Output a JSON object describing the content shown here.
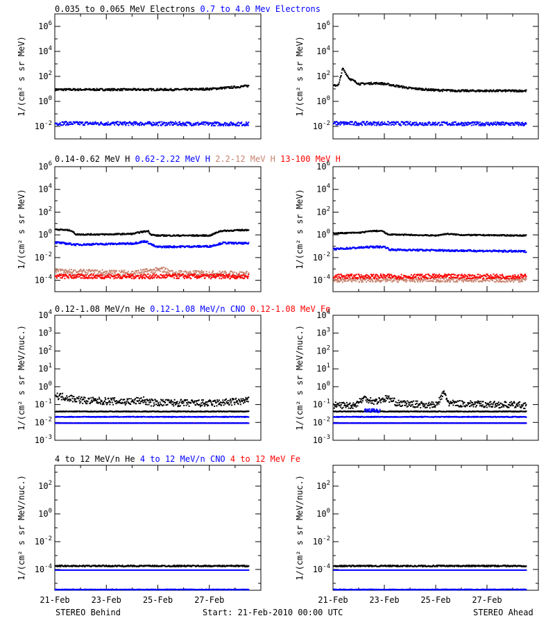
{
  "footer": {
    "left": "STEREO Behind",
    "center": "Start: 21-Feb-2010 00:00 UTC",
    "right": "STEREO Ahead"
  },
  "x_ticks": [
    "21-Feb",
    "23-Feb",
    "25-Feb",
    "27-Feb"
  ],
  "colors": {
    "black": "#000000",
    "blue": "#0000ff",
    "tan": "#c8826e",
    "red": "#ff0000"
  },
  "chart_data": [
    {
      "row": 0,
      "type": "scatter",
      "ylabel": "1/(cm² s sr MeV)",
      "log_exponent_range": [
        -3,
        7
      ],
      "tick_exponents": [
        -2,
        0,
        2,
        4,
        6
      ],
      "legend": [
        {
          "text": "0.035 to 0.065 MeV Electrons",
          "color": "#000000"
        },
        {
          "text": "0.7 to 4.0 Mev Electrons",
          "color": "#0000ff"
        }
      ],
      "panels": [
        {
          "station": "STEREO Behind",
          "series": [
            {
              "color": "#000000",
              "points": [
                [
                  0,
                  1.0
                ],
                [
                  1,
                  1.0
                ],
                [
                  2,
                  1.0
                ],
                [
                  3,
                  1.0
                ],
                [
                  4,
                  1.0
                ],
                [
                  5,
                  1.0
                ],
                [
                  6,
                  1.05
                ],
                [
                  7,
                  1.2
                ],
                [
                  7.5,
                  1.3
                ]
              ],
              "jitter": 0.08
            },
            {
              "color": "#0000ff",
              "points": [
                [
                  0,
                  -1.7
                ],
                [
                  7.5,
                  -1.75
                ]
              ],
              "jitter": 0.15
            }
          ]
        },
        {
          "station": "STEREO Ahead",
          "series": [
            {
              "color": "#000000",
              "points": [
                [
                  0,
                  1.3
                ],
                [
                  0.2,
                  1.4
                ],
                [
                  0.35,
                  2.7
                ],
                [
                  0.6,
                  1.9
                ],
                [
                  1.0,
                  1.45
                ],
                [
                  1.5,
                  1.5
                ],
                [
                  1.8,
                  1.5
                ],
                [
                  2.0,
                  1.45
                ],
                [
                  3,
                  1.1
                ],
                [
                  4,
                  0.95
                ],
                [
                  5,
                  0.9
                ],
                [
                  6,
                  0.9
                ],
                [
                  7.5,
                  0.9
                ]
              ],
              "jitter": 0.08
            },
            {
              "color": "#0000ff",
              "points": [
                [
                  0,
                  -1.7
                ],
                [
                  7.5,
                  -1.75
                ]
              ],
              "jitter": 0.15
            }
          ]
        }
      ]
    },
    {
      "row": 1,
      "type": "scatter",
      "ylabel": "1/(cm² s sr MeV)",
      "log_exponent_range": [
        -5,
        6
      ],
      "tick_exponents": [
        -4,
        -2,
        0,
        2,
        4,
        6
      ],
      "legend": [
        {
          "text": "0.14-0.62 MeV H",
          "color": "#000000"
        },
        {
          "text": "0.62-2.22 MeV H",
          "color": "#0000ff"
        },
        {
          "text": "2.2-12 MeV H",
          "color": "#c8826e"
        },
        {
          "text": "13-100 MeV H",
          "color": "#ff0000"
        }
      ],
      "panels": [
        {
          "station": "STEREO Behind",
          "series": [
            {
              "color": "#c8826e",
              "points": [
                [
                  0,
                  -3.2
                ],
                [
                  3,
                  -3.3
                ],
                [
                  4.2,
                  -3.0
                ],
                [
                  4.5,
                  -3.3
                ],
                [
                  7.5,
                  -3.4
                ]
              ],
              "jitter": 0.25
            },
            {
              "color": "#ff0000",
              "points": [
                [
                  0,
                  -3.6
                ],
                [
                  7.5,
                  -3.6
                ]
              ],
              "jitter": 0.2
            },
            {
              "color": "#000000",
              "points": [
                [
                  0,
                  0.55
                ],
                [
                  0.6,
                  0.45
                ],
                [
                  0.8,
                  0.1
                ],
                [
                  2,
                  0.1
                ],
                [
                  3,
                  0.15
                ],
                [
                  3.3,
                  0.3
                ],
                [
                  3.6,
                  0.4
                ],
                [
                  3.7,
                  0.1
                ],
                [
                  3.9,
                  0.0
                ],
                [
                  6,
                  0.0
                ],
                [
                  6.4,
                  0.4
                ],
                [
                  7.5,
                  0.5
                ]
              ],
              "jitter": 0.06
            },
            {
              "color": "#0000ff",
              "points": [
                [
                  0,
                  -0.6
                ],
                [
                  0.8,
                  -0.8
                ],
                [
                  3,
                  -0.7
                ],
                [
                  3.5,
                  -0.5
                ],
                [
                  3.9,
                  -1.0
                ],
                [
                  6,
                  -0.95
                ],
                [
                  6.5,
                  -0.65
                ],
                [
                  7.5,
                  -0.7
                ]
              ],
              "jitter": 0.08
            }
          ]
        },
        {
          "station": "STEREO Ahead",
          "series": [
            {
              "color": "#c8826e",
              "points": [
                [
                  0,
                  -3.9
                ],
                [
                  7.5,
                  -3.9
                ]
              ],
              "jitter": 0.2
            },
            {
              "color": "#ff0000",
              "points": [
                [
                  0,
                  -3.6
                ],
                [
                  7.5,
                  -3.6
                ]
              ],
              "jitter": 0.2
            },
            {
              "color": "#000000",
              "points": [
                [
                  0,
                  0.2
                ],
                [
                  1.0,
                  0.25
                ],
                [
                  1.5,
                  0.4
                ],
                [
                  1.9,
                  0.4
                ],
                [
                  2.1,
                  0.1
                ],
                [
                  4,
                  0.0
                ],
                [
                  4.4,
                  0.15
                ],
                [
                  5,
                  0.05
                ],
                [
                  7.5,
                  0.0
                ]
              ],
              "jitter": 0.05
            },
            {
              "color": "#0000ff",
              "points": [
                [
                  0,
                  -1.2
                ],
                [
                  1.5,
                  -1.0
                ],
                [
                  2.0,
                  -1.0
                ],
                [
                  2.2,
                  -1.25
                ],
                [
                  7.5,
                  -1.4
                ]
              ],
              "jitter": 0.08
            }
          ]
        }
      ]
    },
    {
      "row": 2,
      "type": "scatter",
      "ylabel": "1/(cm² s sr MeV/nuc.)",
      "log_exponent_range": [
        -3,
        4
      ],
      "tick_exponents": [
        -3,
        -2,
        -1,
        0,
        1,
        2,
        3,
        4
      ],
      "legend": [
        {
          "text": "0.12-1.08 MeV/n He",
          "color": "#000000"
        },
        {
          "text": "0.12-1.08 MeV/n CNO",
          "color": "#0000ff"
        },
        {
          "text": "0.12-1.08 MeV Fe",
          "color": "#ff0000"
        }
      ],
      "panels": [
        {
          "station": "STEREO Behind",
          "series": [
            {
              "color": "#000000",
              "points": [
                [
                  0,
                  -0.45
                ],
                [
                  0.6,
                  -0.6
                ],
                [
                  1.2,
                  -0.75
                ],
                [
                  3,
                  -0.8
                ],
                [
                  3.4,
                  -0.7
                ],
                [
                  3.6,
                  -0.85
                ],
                [
                  6,
                  -0.9
                ],
                [
                  7.5,
                  -0.75
                ]
              ],
              "jitter": 0.2
            },
            {
              "color": "#000000",
              "points": [
                [
                  0,
                  -1.35
                ],
                [
                  7.5,
                  -1.35
                ]
              ],
              "jitter": 0.02
            },
            {
              "color": "#0000ff",
              "points": [
                [
                  0,
                  -1.65
                ],
                [
                  7.5,
                  -1.65
                ]
              ],
              "jitter": 0.02
            },
            {
              "color": "#ff0000",
              "points": [
                [
                  0,
                  -2.0
                ],
                [
                  7.5,
                  -2.0
                ]
              ],
              "jitter": 0.01
            },
            {
              "color": "#0000ff",
              "points": [
                [
                  0,
                  -2.0
                ],
                [
                  7.5,
                  -2.0
                ]
              ],
              "jitter": 0.01
            }
          ]
        },
        {
          "station": "STEREO Ahead",
          "series": [
            {
              "color": "#000000",
              "points": [
                [
                  0,
                  -1.0
                ],
                [
                  0.8,
                  -1.0
                ],
                [
                  1.2,
                  -0.6
                ],
                [
                  1.6,
                  -0.8
                ],
                [
                  2.1,
                  -0.6
                ],
                [
                  2.5,
                  -0.9
                ],
                [
                  4.0,
                  -1.0
                ],
                [
                  4.3,
                  -0.3
                ],
                [
                  4.5,
                  -0.9
                ],
                [
                  7.5,
                  -1.0
                ]
              ],
              "jitter": 0.18
            },
            {
              "color": "#000000",
              "points": [
                [
                  0,
                  -1.35
                ],
                [
                  7.5,
                  -1.35
                ]
              ],
              "jitter": 0.02
            },
            {
              "color": "#0000ff",
              "points": [
                [
                  1.2,
                  -1.3
                ],
                [
                  1.8,
                  -1.3
                ]
              ],
              "jitter": 0.1
            },
            {
              "color": "#0000ff",
              "points": [
                [
                  0,
                  -1.65
                ],
                [
                  7.5,
                  -1.65
                ]
              ],
              "jitter": 0.02
            },
            {
              "color": "#ff0000",
              "points": [
                [
                  0,
                  -2.0
                ],
                [
                  7.5,
                  -2.0
                ]
              ],
              "jitter": 0.01
            },
            {
              "color": "#0000ff",
              "points": [
                [
                  0,
                  -2.0
                ],
                [
                  7.5,
                  -2.0
                ]
              ],
              "jitter": 0.01
            }
          ]
        }
      ]
    },
    {
      "row": 3,
      "type": "scatter",
      "ylabel": "1/(cm² s sr MeV/nuc.)",
      "log_exponent_range": [
        -5.5,
        3.5
      ],
      "tick_exponents": [
        -4,
        -2,
        0,
        2
      ],
      "legend": [
        {
          "text": "4 to 12 MeV/n He",
          "color": "#000000"
        },
        {
          "text": "4 to 12 MeV/n CNO",
          "color": "#0000ff"
        },
        {
          "text": "4 to 12 MeV Fe",
          "color": "#ff0000"
        }
      ],
      "panels": [
        {
          "station": "STEREO Behind",
          "series": [
            {
              "color": "#000000",
              "points": [
                [
                  0,
                  -3.7
                ],
                [
                  7.5,
                  -3.7
                ]
              ],
              "jitter": 0.05
            },
            {
              "color": "#0000ff",
              "points": [
                [
                  0,
                  -4.0
                ],
                [
                  7.5,
                  -4.0
                ]
              ],
              "jitter": 0.0
            },
            {
              "color": "#0000ff",
              "points": [
                [
                  0,
                  -5.4
                ],
                [
                  7.5,
                  -5.4
                ]
              ],
              "jitter": 0.02
            }
          ]
        },
        {
          "station": "STEREO Ahead",
          "series": [
            {
              "color": "#000000",
              "points": [
                [
                  0,
                  -3.7
                ],
                [
                  7.5,
                  -3.7
                ]
              ],
              "jitter": 0.05
            },
            {
              "color": "#0000ff",
              "points": [
                [
                  0,
                  -4.0
                ],
                [
                  7.5,
                  -4.0
                ]
              ],
              "jitter": 0.0
            },
            {
              "color": "#0000ff",
              "points": [
                [
                  0,
                  -5.4
                ],
                [
                  7.5,
                  -5.4
                ]
              ],
              "jitter": 0.02
            }
          ]
        }
      ]
    }
  ]
}
